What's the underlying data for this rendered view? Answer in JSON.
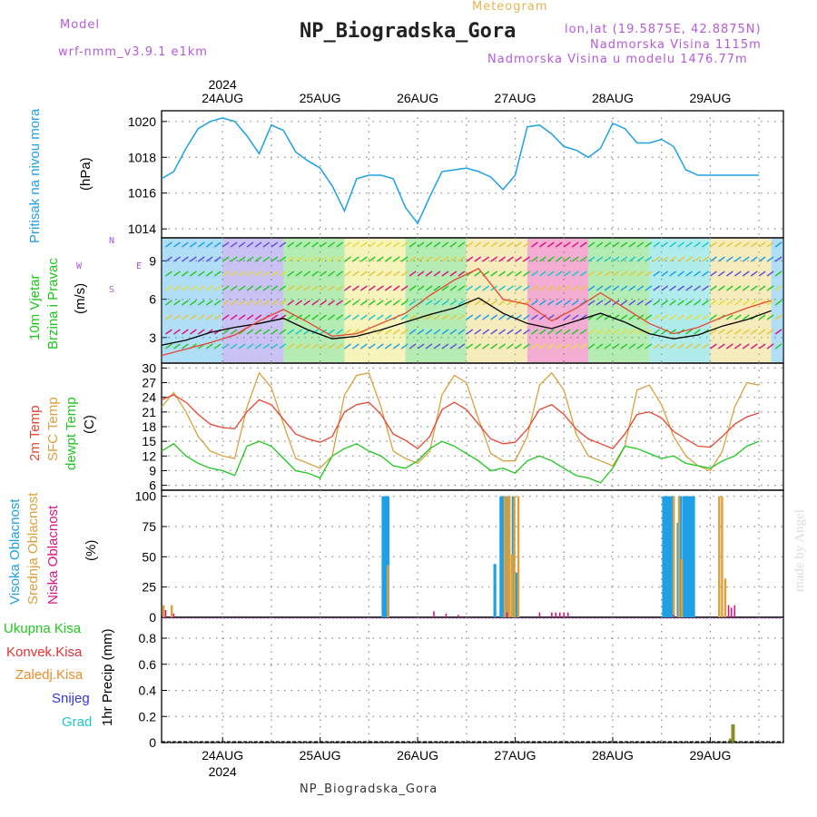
{
  "header": {
    "model_label": "Model",
    "model_name": "wrf-nmm_v3.9.1 e1km",
    "meteogram_label": "Meteogram",
    "station_title": "NP_Biogradska_Gora",
    "lonlat": "lon,lat (19.5875E, 42.8875N)",
    "elevation": "Nadmorska Visina 1115m",
    "model_elevation": "Nadmorska Visina u modelu 1476.77m",
    "footer_station": "NP_Biogradska_Gora",
    "watermark": "made by Angel",
    "year": "2024"
  },
  "colors": {
    "pressure": "#1ea0e6",
    "wind_label": "#19c819",
    "wind_dir": "#aa55dd",
    "t2m": "#e64632",
    "tsfc": "#dca03c",
    "dewpt": "#1ec81e",
    "high_cloud": "#1ea0e6",
    "mid_cloud": "#dca03c",
    "low_cloud": "#dc1482",
    "conv": "#e63232",
    "frozen": "#f08c28",
    "snow": "#3232e6",
    "hail": "#1ec8c8",
    "precip_bar": "#8c8c28"
  },
  "chart_data": [
    {
      "type": "line",
      "name": "pressure",
      "ylabel_main": "Pritisak na nivou mora",
      "ylabel_unit": "(hPa)",
      "ylim": [
        1013.5,
        1020.6
      ],
      "yticks": [
        1014,
        1016,
        1018,
        1020
      ],
      "x_days": [
        "24AUG",
        "25AUG",
        "26AUG",
        "27AUG",
        "28AUG",
        "29AUG"
      ],
      "x": [
        0,
        3,
        6,
        9,
        12,
        15,
        18,
        21,
        24,
        27,
        30,
        33,
        36,
        39,
        42,
        45,
        48,
        51,
        54,
        57,
        60,
        63,
        66,
        69,
        72,
        75,
        78,
        81,
        84,
        87,
        90,
        93,
        96,
        99,
        102,
        105,
        108,
        111,
        114,
        117,
        120,
        123,
        126,
        129,
        132,
        135,
        138,
        141,
        147
      ],
      "values": [
        1016.8,
        1017.2,
        1018.5,
        1019.6,
        1020.0,
        1020.2,
        1020.0,
        1019.2,
        1018.2,
        1019.8,
        1019.5,
        1018.3,
        1017.8,
        1017.4,
        1016.4,
        1015.0,
        1016.8,
        1017.0,
        1017.0,
        1016.8,
        1015.2,
        1014.3,
        1015.8,
        1017.2,
        1017.3,
        1017.4,
        1017.2,
        1016.9,
        1016.2,
        1017.0,
        1019.7,
        1019.8,
        1019.3,
        1018.6,
        1018.4,
        1018.0,
        1018.5,
        1019.9,
        1019.6,
        1018.8,
        1018.8,
        1019.0,
        1018.6,
        1017.3,
        1017.0,
        1017.0,
        1017.0,
        1017.0,
        1017.0
      ],
      "grid": true
    },
    {
      "type": "line",
      "name": "wind",
      "ylabel_main": "10m Vjetar",
      "ylabel_sub": "Brzina i Pravac",
      "ylabel_unit": "(m/s)",
      "dir_label": "N",
      "dir_w": "W",
      "dir_e": "E",
      "dir_s": "S",
      "ylim": [
        1,
        10.8
      ],
      "yticks": [
        3,
        6,
        9
      ],
      "x": [
        0,
        6,
        12,
        18,
        24,
        30,
        36,
        42,
        48,
        54,
        60,
        66,
        72,
        78,
        84,
        90,
        96,
        102,
        108,
        114,
        120,
        126,
        132,
        138,
        144,
        150
      ],
      "speed": [
        2.4,
        2.8,
        3.4,
        3.8,
        4.1,
        4.5,
        3.6,
        2.9,
        3.1,
        3.6,
        4.2,
        4.8,
        5.3,
        6.1,
        4.9,
        4.1,
        3.7,
        4.3,
        4.9,
        4.2,
        3.3,
        2.9,
        3.2,
        3.9,
        4.4,
        5.1
      ],
      "gust": [
        1.6,
        2.1,
        2.6,
        3.2,
        4.3,
        5.2,
        4.2,
        3.1,
        3.3,
        4.1,
        4.9,
        6.3,
        7.5,
        8.4,
        6.0,
        5.6,
        4.3,
        5.3,
        6.5,
        5.3,
        4.1,
        3.3,
        3.8,
        4.6,
        5.3,
        5.9
      ],
      "grid": true
    },
    {
      "type": "line",
      "name": "temperature",
      "series_names": [
        "2m Temp",
        "SFC Temp",
        "dewpt Temp"
      ],
      "ylabel_unit": "(C)",
      "ylim": [
        5,
        31
      ],
      "yticks": [
        6,
        9,
        12,
        15,
        18,
        21,
        24,
        27,
        30
      ],
      "x": [
        0,
        3,
        6,
        9,
        12,
        15,
        18,
        21,
        24,
        27,
        30,
        33,
        36,
        39,
        42,
        45,
        48,
        51,
        54,
        57,
        60,
        63,
        66,
        69,
        72,
        75,
        78,
        81,
        84,
        87,
        90,
        93,
        96,
        99,
        102,
        105,
        108,
        111,
        114,
        117,
        120,
        123,
        126,
        129,
        132,
        135,
        138,
        141,
        144,
        147
      ],
      "t2m": [
        23.5,
        24.5,
        23.0,
        20.5,
        18.5,
        17.8,
        17.6,
        21.0,
        23.5,
        22.5,
        19.5,
        16.5,
        15.5,
        14.8,
        16.0,
        21.0,
        22.5,
        23.0,
        20.5,
        16.5,
        15.2,
        13.5,
        16.0,
        21.5,
        23.0,
        21.5,
        18.5,
        15.5,
        14.5,
        14.8,
        17.5,
        21.5,
        22.5,
        20.5,
        17.5,
        15.5,
        14.5,
        13.5,
        16.5,
        20.5,
        21.0,
        19.8,
        17.0,
        15.5,
        14.0,
        13.8,
        16.0,
        18.5,
        20.0,
        20.8
      ],
      "tsfc": [
        22.0,
        25.0,
        21.0,
        16.0,
        13.0,
        12.0,
        11.5,
        22.0,
        29.0,
        26.0,
        18.5,
        11.5,
        10.5,
        9.5,
        12.0,
        24.5,
        28.5,
        29.0,
        22.0,
        13.0,
        11.5,
        10.5,
        13.0,
        24.5,
        28.5,
        27.0,
        19.5,
        12.5,
        11.0,
        11.0,
        16.0,
        26.5,
        29.0,
        25.5,
        16.5,
        12.0,
        11.0,
        10.0,
        14.0,
        25.5,
        26.5,
        22.5,
        16.0,
        12.0,
        10.0,
        9.0,
        13.0,
        22.0,
        27.0,
        26.5
      ],
      "dewpt": [
        13.0,
        14.5,
        12.0,
        10.5,
        9.5,
        9.0,
        8.0,
        14.0,
        15.0,
        14.0,
        11.5,
        9.0,
        8.5,
        7.5,
        12.0,
        13.5,
        14.5,
        13.0,
        12.0,
        10.0,
        9.5,
        11.0,
        13.5,
        15.0,
        14.0,
        12.5,
        11.0,
        9.0,
        9.5,
        8.5,
        11.0,
        12.0,
        11.0,
        9.5,
        8.0,
        7.5,
        6.5,
        9.5,
        14.0,
        13.5,
        12.5,
        11.5,
        12.0,
        10.5,
        10.0,
        9.5,
        11.0,
        12.0,
        14.0,
        15.0
      ],
      "grid": true
    },
    {
      "type": "bar",
      "name": "clouds",
      "series_names": [
        "Visoka Oblacnost",
        "Srednja Oblacnost",
        "Niska Oblacnost"
      ],
      "ylabel_unit": "(%)",
      "ylim": [
        0,
        105
      ],
      "yticks": [
        0,
        25,
        50,
        75,
        100
      ],
      "high": {
        "x": [
          54.5,
          55.1,
          55.7,
          82.0,
          83.5,
          84.1,
          84.7,
          85.3,
          86.5,
          87.3,
          123.5,
          124.1,
          124.7,
          125.3,
          125.9,
          127.1,
          127.7,
          128.5,
          129.1,
          129.7,
          130.3,
          130.9
        ],
        "values": [
          100,
          100,
          100,
          44,
          100,
          100,
          100,
          100,
          100,
          37,
          100,
          100,
          100,
          100,
          100,
          78,
          100,
          100,
          100,
          100,
          100,
          100
        ]
      },
      "mid": {
        "x": [
          0.5,
          2.5,
          55.7,
          84.4,
          85.0,
          85.6,
          86.2,
          86.8,
          87.8,
          126.0,
          127.3,
          128.0,
          137.2,
          137.9,
          138.7
        ],
        "values": [
          10,
          10,
          43,
          100,
          100,
          100,
          52,
          100,
          100,
          100,
          100,
          48,
          100,
          100,
          32
        ],
        "note": ""
      },
      "low": {
        "x": [
          1.0,
          3.0,
          19.0,
          67.0,
          70.0,
          73.0,
          85.0,
          93.0,
          96.0,
          97.0,
          98.0,
          99.0,
          100.0,
          126.0,
          139.5,
          140.2,
          141.0
        ],
        "values": [
          6,
          3,
          1,
          5,
          3,
          2,
          4,
          4,
          4,
          4,
          4,
          4,
          4,
          2,
          10,
          8,
          10
        ]
      },
      "grid": true
    },
    {
      "type": "bar",
      "name": "precipitation",
      "series_names": [
        "Ukupna Kisa",
        "Konvek.Kisa",
        "Zaledj.Kisa",
        "Snijeg",
        "Grad"
      ],
      "ylabel_unit": "1hr Precip (mm)",
      "ylim": [
        0,
        0.96
      ],
      "yticks": [
        0,
        0.2,
        0.4,
        0.6,
        0.8
      ],
      "x": [
        140.0,
        140.6
      ],
      "values": [
        0.03,
        0.14
      ],
      "grid": true
    }
  ]
}
